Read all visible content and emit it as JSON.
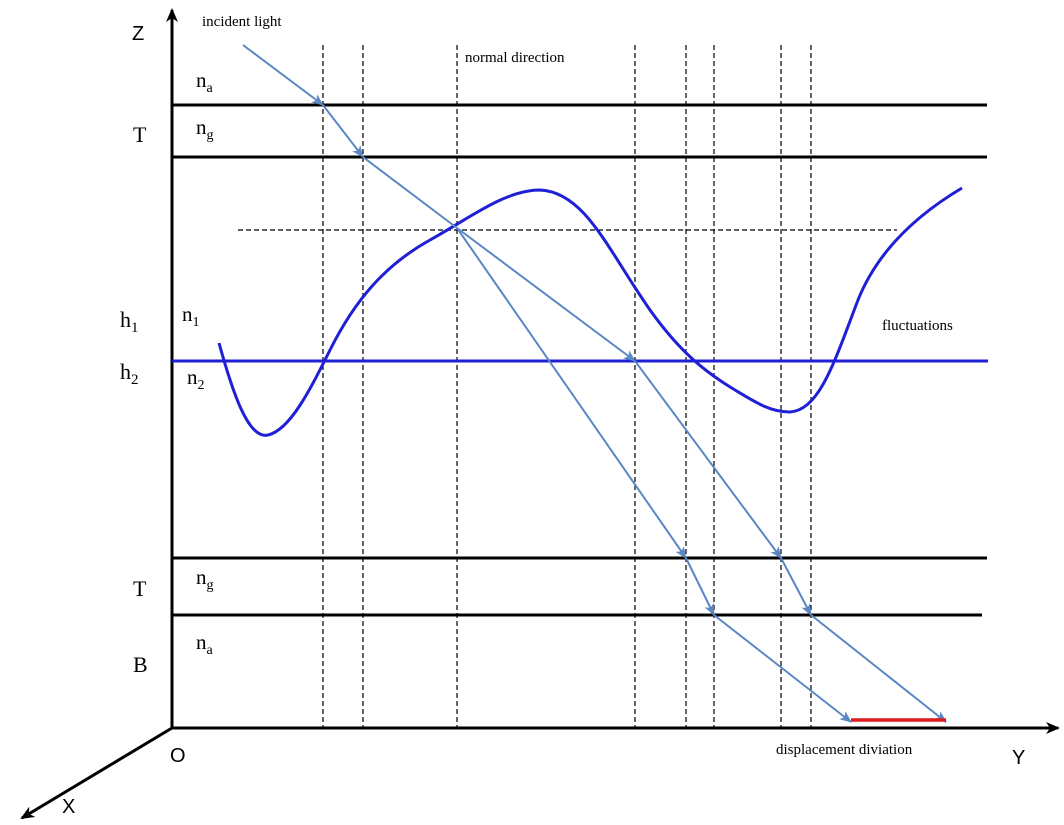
{
  "axes": {
    "z_label": "Z",
    "y_label": "Y",
    "x_label": "X",
    "origin_label": "O"
  },
  "layers": {
    "top_ambient": {
      "label": "n",
      "sub": "a"
    },
    "top_glass": {
      "label": "n",
      "sub": "g"
    },
    "upper_medium": {
      "label": "n",
      "sub": "1"
    },
    "lower_medium": {
      "label": "n",
      "sub": "2"
    },
    "bottom_glass": {
      "label": "n",
      "sub": "g"
    },
    "bottom_ambient": {
      "label": "n",
      "sub": "a"
    }
  },
  "side_labels": {
    "top_thickness": "T",
    "h1": {
      "label": "h",
      "sub": "1"
    },
    "h2": {
      "label": "h",
      "sub": "2"
    },
    "bottom_thickness": "T",
    "bottom": "B"
  },
  "annotations": {
    "incident_light": "incident light",
    "normal_direction": "normal direction",
    "fluctuations": "fluctuations",
    "displacement": "displacement diviation"
  },
  "colors": {
    "axis": "#000000",
    "curve": "#1f1fd6",
    "ray": "#5b87c4",
    "deviation": "#e0191b"
  }
}
